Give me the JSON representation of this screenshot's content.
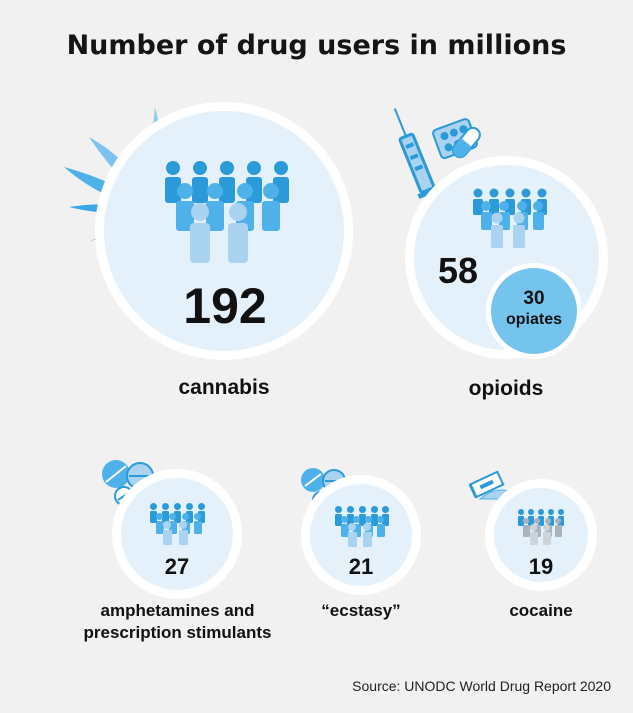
{
  "title": "Number of drug users in millions",
  "source": "Source: UNODC World Drug Report 2020",
  "colors": {
    "background": "#f1f1f1",
    "circle_fill": "#e4f1fb",
    "circle_border": "#ffffff",
    "accent_blue": "#2a9ad8",
    "light_blue": "#a9d3f0",
    "opiates_circle": "#74c4ee",
    "cocaine_people": "#a9b3bb"
  },
  "drugs": {
    "cannabis": {
      "value": "192",
      "label": "cannabis",
      "icon": "cannabis-leaf-icon"
    },
    "opioids": {
      "value": "58",
      "label": "opioids",
      "icon": "syringe-pills-icon",
      "sub": {
        "value": "30",
        "label": "opiates"
      }
    },
    "amphetamines": {
      "value": "27",
      "label_line1": "amphetamines and",
      "label_line2": "prescription stimulants",
      "icon": "pills-icon"
    },
    "ecstasy": {
      "value": "21",
      "label": "“ecstasy”",
      "icon": "pills-icon"
    },
    "cocaine": {
      "value": "19",
      "label": "cocaine",
      "icon": "razor-blade-powder-icon"
    }
  }
}
